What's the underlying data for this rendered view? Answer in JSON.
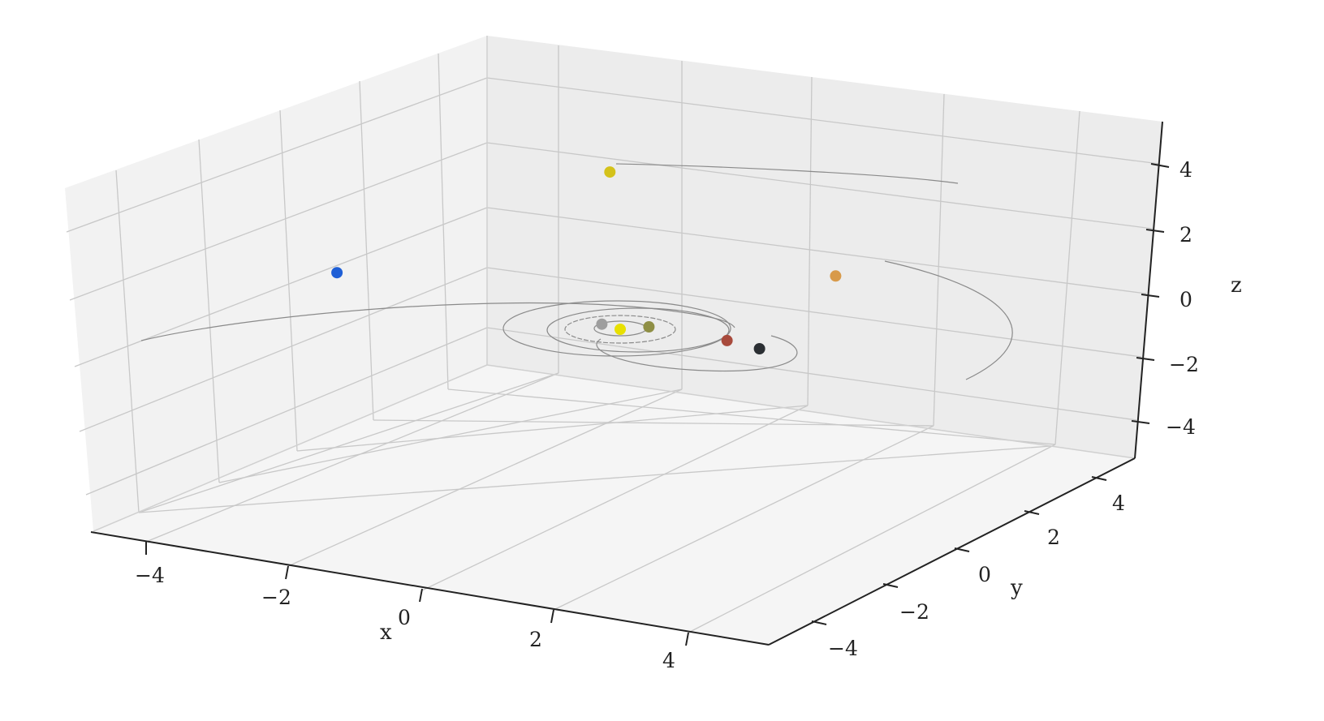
{
  "chart_data": {
    "type": "scatter",
    "projection": "3d",
    "title": "",
    "xlabel": "x",
    "ylabel": "y",
    "zlabel": "z",
    "xlim": [
      -5,
      5
    ],
    "ylim": [
      -5,
      5
    ],
    "zlim": [
      -5,
      5
    ],
    "xticks": [
      "−4",
      "−2",
      "0",
      "2",
      "4"
    ],
    "yticks": [
      "−4",
      "−2",
      "0",
      "2",
      "4"
    ],
    "zticks": [
      "−4",
      "−2",
      "0",
      "2",
      "4"
    ],
    "grid": true,
    "legend": "none",
    "trail_color": "#8a8a8a",
    "points": [
      {
        "color": "#e8e000",
        "x": 0.0,
        "y": 0.0,
        "z": 0.0
      },
      {
        "color": "#9e9e9e",
        "x": -0.35,
        "y": 0.15,
        "z": 0.0
      },
      {
        "color": "#8f8f45",
        "x": 0.3,
        "y": 0.6,
        "z": 0.0
      },
      {
        "color": "#a84a3c",
        "x": 1.6,
        "y": 0.6,
        "z": 0.0
      },
      {
        "color": "#2b2f33",
        "x": 2.2,
        "y": 0.4,
        "z": 0.0
      },
      {
        "color": "#1f5fd6",
        "x": -4.8,
        "y": 0.3,
        "z": 0.1
      },
      {
        "color": "#d89a4a",
        "x": 2.7,
        "y": 3.2,
        "z": 1.6
      },
      {
        "color": "#d4c21a",
        "x": -0.1,
        "y": 0.4,
        "z": 4.7
      }
    ]
  }
}
